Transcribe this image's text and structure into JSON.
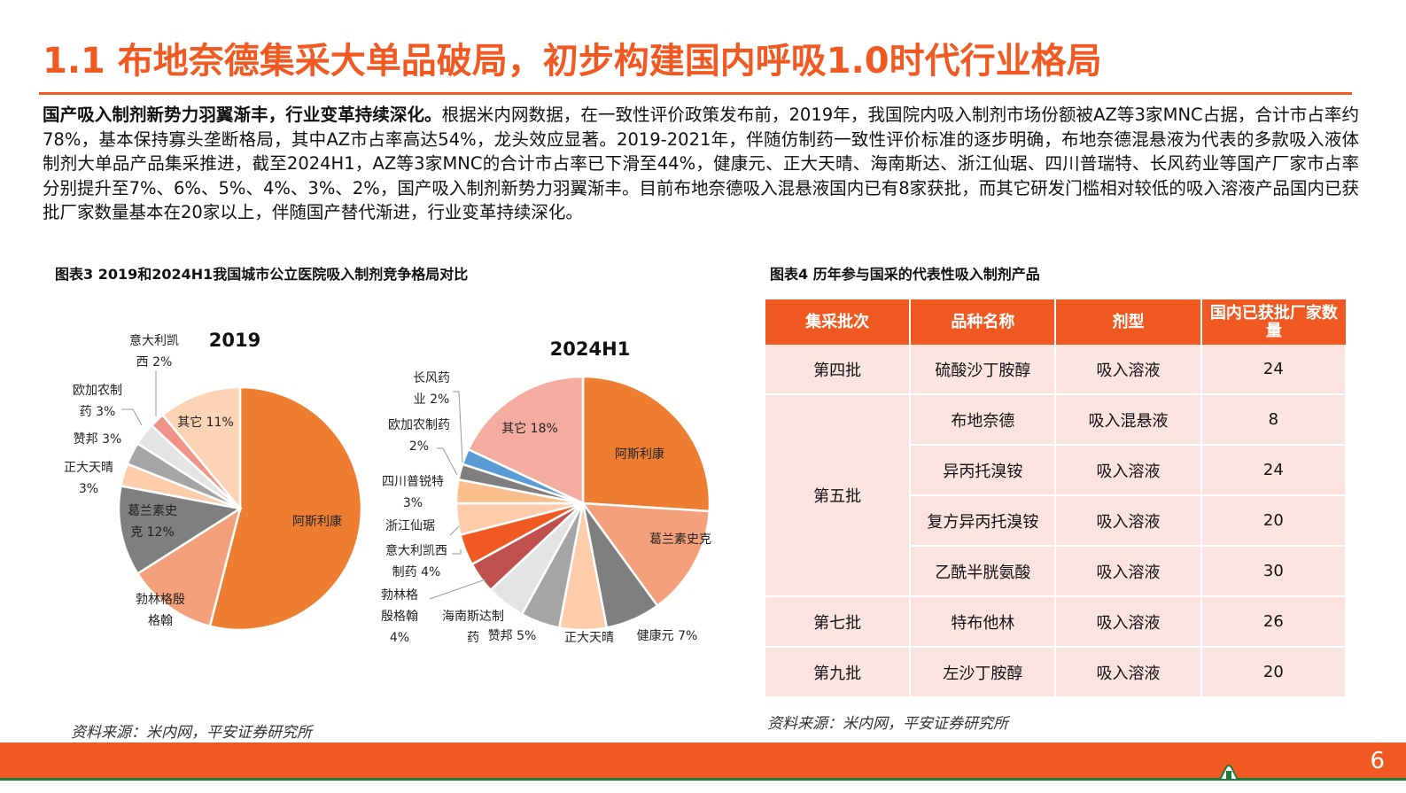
{
  "header": {
    "title": "1.1 布地奈德集采大单品破局，初步构建国内呼吸1.0时代行业格局"
  },
  "paragraph": {
    "lead": "国产吸入制剂新势力羽翼渐丰，行业变革持续深化。",
    "body": "根据米内网数据，在一致性评价政策发布前，2019年，我国院内吸入制剂市场份额被AZ等3家MNC占据，合计市占率约78%，基本保持寡头垄断格局，其中AZ市占率高达54%，龙头效应显著。2019-2021年，伴随仿制药一致性评价标准的逐步明确，布地奈德混悬液为代表的多款吸入液体制剂大单品产品集采推进，截至2024H1，AZ等3家MNC的合计市占率已下滑至44%，健康元、正大天晴、海南斯达、浙江仙琚、四川普瑞特、长风药业等国产厂家市占率分别提升至7%、6%、5%、4%、3%、2%，国产吸入制剂新势力羽翼渐丰。目前布地奈德吸入混悬液国内已有8家获批，而其它研发门槛相对较低的吸入溶液产品国内已获批厂家数量基本在20家以上，伴随国产替代渐进，行业变革持续深化。"
  },
  "figure3": {
    "caption": "图表3 2019和2024H1我国城市公立医院吸入制剂竞争格局对比",
    "source": "资料来源：米内网，平安证券研究所"
  },
  "figure4": {
    "caption": "图表4 历年参与国采的代表性吸入制剂产品",
    "source": "资料来源：米内网，平安证券研究所"
  },
  "chart_data": [
    {
      "type": "pie",
      "title": "2019",
      "unit": "%",
      "slices": [
        {
          "name": "阿斯利康",
          "value": 54,
          "label": "阿斯利康",
          "color": "#ED7D31"
        },
        {
          "name": "勃林格殷格翰",
          "value": 12,
          "label": "勃林格殷\n格翰",
          "color": "#F4A07A"
        },
        {
          "name": "葛兰素史克",
          "value": 12,
          "label": "葛兰素史\n克 12%",
          "color": "#7F7F7F"
        },
        {
          "name": "正大天晴",
          "value": 3,
          "label": "正大天晴\n3%",
          "color": "#FDCCAA"
        },
        {
          "name": "赞邦",
          "value": 3,
          "label": "赞邦 3%",
          "color": "#A5A5A5"
        },
        {
          "name": "欧加农制药",
          "value": 3,
          "label": "欧加农制\n药 3%",
          "color": "#E4E4E4"
        },
        {
          "name": "意大利凯西",
          "value": 2,
          "label": "意大利凯\n西 2%",
          "color": "#F0948A"
        },
        {
          "name": "其它",
          "value": 11,
          "label": "其它 11%",
          "color": "#FBD3B5"
        }
      ]
    },
    {
      "type": "pie",
      "title": "2024H1",
      "unit": "%",
      "slices": [
        {
          "name": "阿斯利康",
          "value": 26,
          "label": "阿斯利康",
          "color": "#ED7D31"
        },
        {
          "name": "葛兰素史克",
          "value": 14,
          "label": "葛兰素史克",
          "color": "#F4A07A"
        },
        {
          "name": "健康元",
          "value": 7,
          "label": "健康元 7%",
          "color": "#7F7F7F"
        },
        {
          "name": "正大天晴",
          "value": 6,
          "label": "正大天晴",
          "color": "#FDCCAA"
        },
        {
          "name": "赞邦",
          "value": 5,
          "label": "赞邦 5%",
          "color": "#A5A5A5"
        },
        {
          "name": "海南斯达制药",
          "value": 5,
          "label": "海南斯达制\n药",
          "color": "#E4E4E4"
        },
        {
          "name": "勃林格殷格翰",
          "value": 4,
          "label": "勃林格\n殷格翰\n4%",
          "color": "#C0504D"
        },
        {
          "name": "意大利凯西制药",
          "value": 4,
          "label": "意大利凯西\n制药 4%",
          "color": "#F05A22"
        },
        {
          "name": "浙江仙琚",
          "value": 4,
          "label": "浙江仙琚",
          "color": "#FDCCAA"
        },
        {
          "name": "四川普锐特",
          "value": 3,
          "label": "四川普锐特\n3%",
          "color": "#F9BE8C"
        },
        {
          "name": "欧加农制药",
          "value": 2,
          "label": "欧加农制药\n2%",
          "color": "#7F7F7F"
        },
        {
          "name": "长风药业",
          "value": 2,
          "label": "长风药\n业 2%",
          "color": "#5B9BD5"
        },
        {
          "name": "其它",
          "value": 18,
          "label": "其它 18%",
          "color": "#F4ACA0"
        }
      ]
    }
  ],
  "table": {
    "headers": [
      "集采批次",
      "品种名称",
      "剂型",
      "国内已获批厂家数量"
    ],
    "rows": [
      {
        "batch": "第四批",
        "name": "硫酸沙丁胺醇",
        "form": "吸入溶液",
        "count": "24"
      },
      {
        "batch": "第五批",
        "name": "布地奈德",
        "form": "吸入混悬液",
        "count": "8"
      },
      {
        "batch": "",
        "name": "异丙托溴铵",
        "form": "吸入溶液",
        "count": "24"
      },
      {
        "batch": "",
        "name": "复方异丙托溴铵",
        "form": "吸入溶液",
        "count": "20"
      },
      {
        "batch": "",
        "name": "乙酰半胱氨酸",
        "form": "吸入溶液",
        "count": "30"
      },
      {
        "batch": "第七批",
        "name": "特布他林",
        "form": "吸入溶液",
        "count": "26"
      },
      {
        "batch": "第九批",
        "name": "左沙丁胺醇",
        "form": "吸入溶液",
        "count": "20"
      }
    ]
  },
  "footer": {
    "page_number": "6"
  },
  "colors": {
    "accent": "#F05A22",
    "table_cell": "#FBE4E0",
    "footer_line": "#1E7B3A"
  }
}
